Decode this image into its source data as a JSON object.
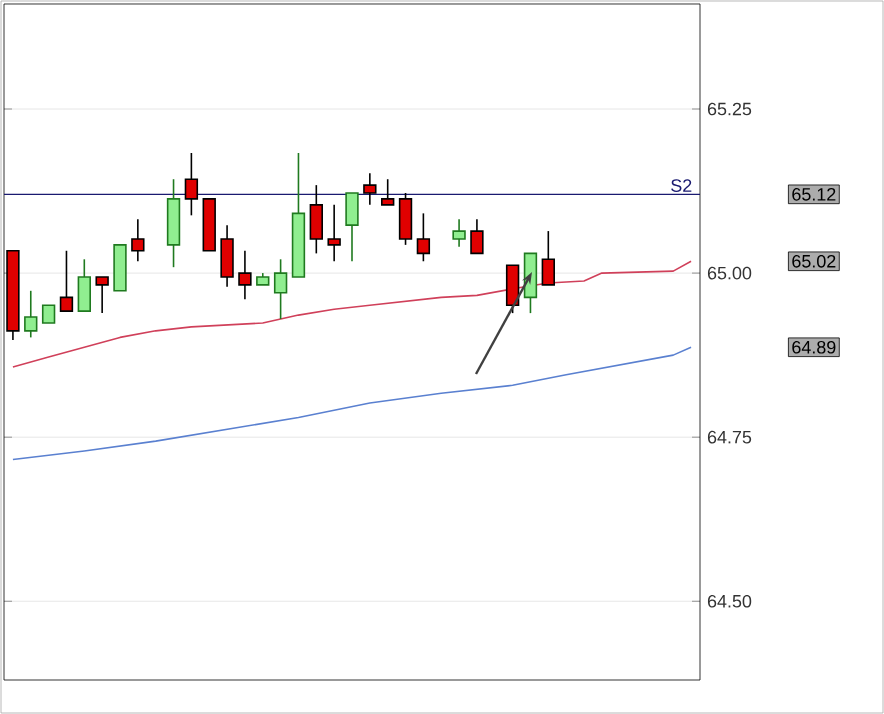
{
  "chart_data": {
    "type": "candlestick",
    "categories": [
      null,
      null,
      null,
      null,
      null,
      null,
      null,
      null,
      null,
      null,
      null,
      null,
      null,
      null,
      null,
      null,
      null,
      null,
      null,
      null,
      null,
      null,
      null,
      null,
      null,
      null,
      null,
      null,
      null,
      null,
      null,
      null,
      null,
      null,
      null,
      null,
      null,
      null,
      null
    ],
    "ohlc": [
      [
        65.034,
        65.034,
        64.898,
        64.912
      ],
      [
        64.912,
        64.973,
        64.902,
        64.933
      ],
      [
        64.924,
        64.951,
        64.924,
        64.951
      ],
      [
        64.963,
        65.034,
        64.942,
        64.942
      ],
      [
        64.942,
        65.021,
        64.942,
        64.994
      ],
      [
        64.994,
        64.994,
        64.939,
        64.982
      ],
      [
        64.973,
        65.043,
        64.973,
        65.043
      ],
      [
        65.052,
        65.082,
        65.018,
        65.034
      ],
      null,
      [
        65.043,
        65.143,
        65.009,
        65.113
      ],
      [
        65.143,
        65.183,
        65.088,
        65.113
      ],
      [
        65.113,
        65.113,
        65.034,
        65.034
      ],
      [
        65.052,
        65.073,
        64.979,
        64.994
      ],
      [
        65.0,
        65.034,
        64.96,
        64.982
      ],
      [
        64.982,
        65.0,
        64.982,
        64.994
      ],
      [
        64.97,
        65.021,
        64.93,
        65.0
      ],
      [
        64.994,
        65.183,
        64.994,
        65.091
      ],
      [
        65.104,
        65.134,
        65.03,
        65.052
      ],
      [
        65.052,
        65.104,
        65.018,
        65.043
      ],
      [
        65.073,
        65.122,
        65.018,
        65.122
      ],
      [
        65.134,
        65.152,
        65.104,
        65.122
      ],
      [
        65.113,
        65.143,
        65.104,
        65.104
      ],
      [
        65.113,
        65.122,
        65.043,
        65.052
      ],
      [
        65.052,
        65.091,
        65.018,
        65.03
      ],
      null,
      [
        65.052,
        65.082,
        65.04,
        65.064
      ],
      [
        65.064,
        65.082,
        65.03,
        65.03
      ],
      null,
      [
        65.012,
        65.012,
        64.939,
        64.951
      ],
      [
        64.963,
        65.03,
        64.939,
        65.03
      ],
      [
        65.021,
        65.064,
        64.982,
        64.982
      ],
      null,
      null,
      null,
      null,
      null,
      null,
      null,
      null
    ],
    "colors": [
      "#e00000",
      "#90ee90",
      "#90ee90",
      "#e00000",
      "#90ee90",
      "#e00000",
      "#90ee90",
      "#e00000",
      null,
      "#90ee90",
      "#e00000",
      "#e00000",
      "#e00000",
      "#e00000",
      "#90ee90",
      "#90ee90",
      "#90ee90",
      "#e00000",
      "#e00000",
      "#90ee90",
      "#e00000",
      "#e00000",
      "#e00000",
      "#e00000",
      null,
      "#90ee90",
      "#e00000",
      null,
      "#e00000",
      "#90ee90",
      "#e00000",
      null,
      null,
      null,
      null,
      null,
      null,
      null,
      null
    ],
    "series": [
      {
        "type": "line",
        "color": "#d0405a",
        "values": [
          64.857,
          null,
          64.872,
          null,
          64.887,
          null,
          64.902,
          null,
          64.912,
          null,
          64.918,
          null,
          64.921,
          null,
          64.924,
          null,
          64.936,
          null,
          64.945,
          null,
          64.951,
          null,
          64.957,
          null,
          64.963,
          null,
          64.966,
          null,
          64.976,
          null,
          64.985,
          null,
          64.988,
          65.0,
          null,
          null,
          null,
          65.003,
          65.018
        ]
      },
      {
        "type": "line",
        "color": "#5a80d0",
        "values": [
          64.716,
          null,
          null,
          null,
          64.729,
          null,
          null,
          null,
          64.744,
          null,
          null,
          null,
          64.762,
          null,
          null,
          null,
          64.78,
          null,
          null,
          null,
          64.802,
          null,
          null,
          null,
          64.817,
          null,
          null,
          null,
          64.829,
          null,
          null,
          64.845,
          null,
          null,
          64.86,
          null,
          null,
          64.875,
          64.887
        ]
      }
    ],
    "ylim": [
      64.38,
      65.41
    ],
    "yticks": [
      {
        "value": 64.5,
        "label": "64.50"
      },
      {
        "value": 64.75,
        "label": "64.75"
      },
      {
        "value": 65.0,
        "label": "65.00"
      },
      {
        "value": 65.25,
        "label": "65.25"
      }
    ],
    "ref_lines": [
      {
        "axis": "y",
        "value": 65.12,
        "label": "S2",
        "color": "#1a1a70"
      }
    ],
    "annotations": [
      "65.12",
      "65.02",
      "64.89"
    ],
    "grid": "y",
    "tick_labels": "y"
  }
}
